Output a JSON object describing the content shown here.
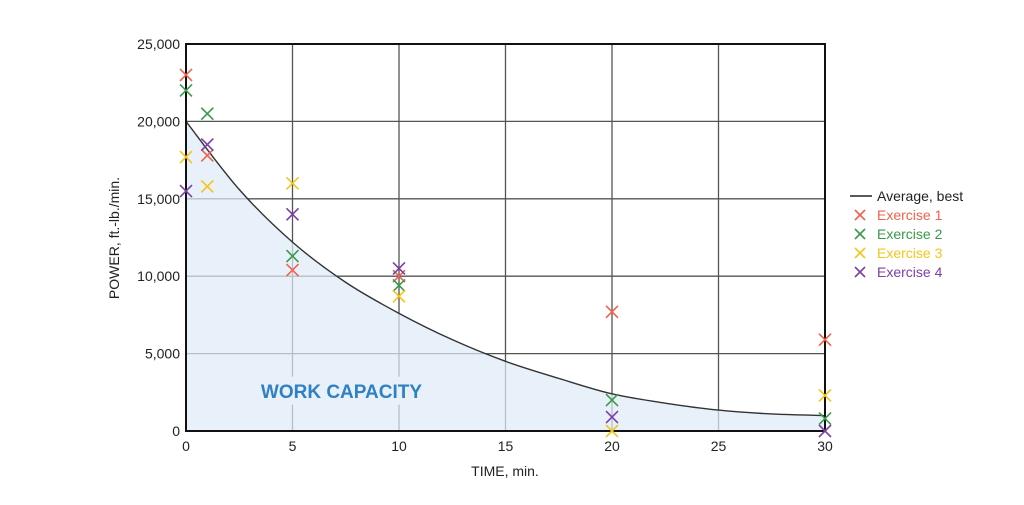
{
  "chart_data": {
    "type": "scatter",
    "title": "",
    "xlabel": "TIME, min.",
    "ylabel": "POWER, ft.-lb./min.",
    "xlim": [
      0,
      30
    ],
    "ylim": [
      0,
      25000
    ],
    "x_ticks": [
      0,
      5,
      10,
      15,
      20,
      25,
      30
    ],
    "x_tick_labels": [
      "0",
      "5",
      "10",
      "15",
      "20",
      "25",
      "30"
    ],
    "y_ticks": [
      0,
      5000,
      10000,
      15000,
      20000,
      25000
    ],
    "y_tick_labels": [
      "0",
      "5,000",
      "10,000",
      "15,000",
      "20,000",
      "25,000"
    ],
    "grid": true,
    "legend_position": "right",
    "annotation": {
      "text": "WORK CAPACITY",
      "x": 7.3,
      "y": 2600,
      "color": "#2F80C4"
    },
    "shaded_region": {
      "label": "WORK CAPACITY",
      "under_series": "Average, best",
      "fill": "#E8F1FA"
    },
    "line_series": {
      "name": "Average, best",
      "color": "#333333",
      "x": [
        0,
        2.5,
        5,
        7.5,
        10,
        12.5,
        15,
        17.5,
        20,
        22.5,
        25,
        27.5,
        30
      ],
      "y": [
        20000,
        15600,
        12200,
        9600,
        7600,
        5900,
        4500,
        3400,
        2400,
        1800,
        1350,
        1100,
        1000
      ]
    },
    "series": [
      {
        "name": "Exercise 1",
        "color": "#F0624D",
        "marker": "x",
        "x": [
          0,
          1,
          5,
          10,
          20,
          30
        ],
        "y": [
          23000,
          17800,
          10400,
          10000,
          7700,
          5900
        ]
      },
      {
        "name": "Exercise 2",
        "color": "#3A9A4A",
        "marker": "x",
        "x": [
          0,
          1,
          5,
          10,
          20,
          30
        ],
        "y": [
          22000,
          20500,
          11300,
          9400,
          2000,
          800
        ]
      },
      {
        "name": "Exercise 3",
        "color": "#F5C518",
        "marker": "x",
        "x": [
          0,
          1,
          5,
          10,
          20,
          30
        ],
        "y": [
          17700,
          15800,
          16000,
          8700,
          0,
          2300
        ]
      },
      {
        "name": "Exercise 4",
        "color": "#7B3FA6",
        "marker": "x",
        "x": [
          0,
          1,
          5,
          10,
          20,
          30
        ],
        "y": [
          15500,
          18500,
          14000,
          10500,
          900,
          0
        ]
      }
    ]
  },
  "legend": {
    "items": [
      {
        "label": "Average, best",
        "color": "#222222",
        "symbol": "line"
      },
      {
        "label": "Exercise 1",
        "color": "#F0624D",
        "symbol": "x"
      },
      {
        "label": "Exercise 2",
        "color": "#3A9A4A",
        "symbol": "x"
      },
      {
        "label": "Exercise 3",
        "color": "#F5C518",
        "symbol": "x"
      },
      {
        "label": "Exercise 4",
        "color": "#7B3FA6",
        "symbol": "x"
      }
    ]
  }
}
